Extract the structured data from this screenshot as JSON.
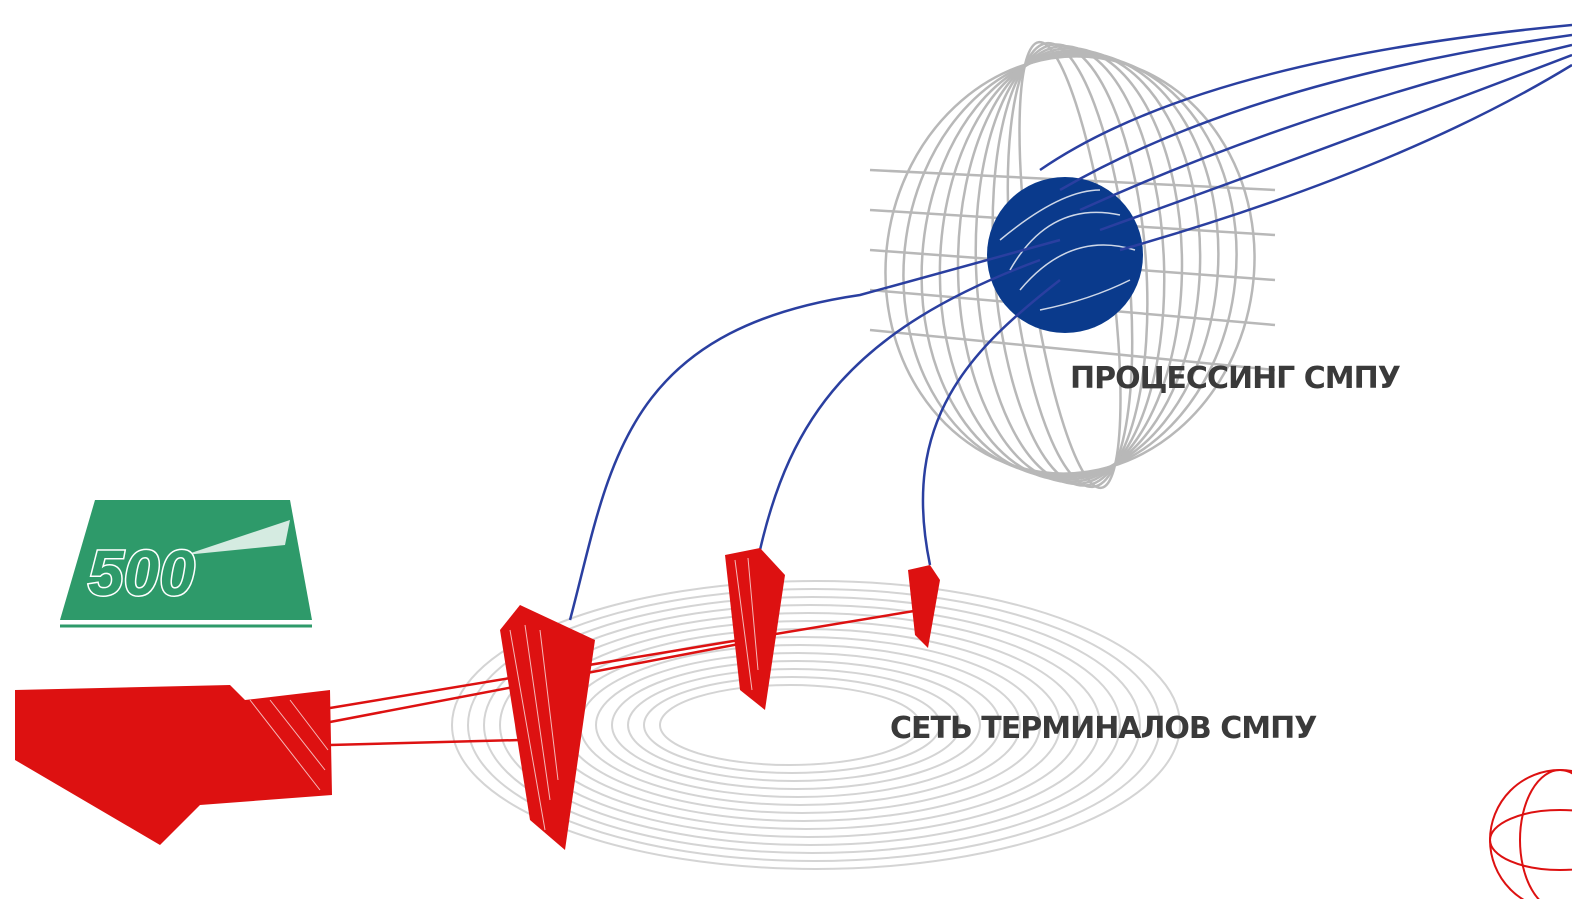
{
  "nodes": [
    {
      "label": "ПРОЦЕССИНГ СМПУ"
    },
    {
      "label": "СЕТЬ ТЕРМИНАЛОВ СМПУ"
    }
  ],
  "card": {
    "label": "500"
  }
}
